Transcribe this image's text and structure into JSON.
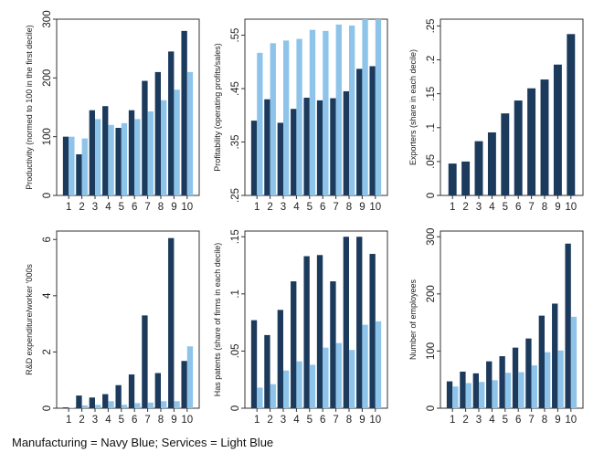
{
  "caption": "Manufacturing = Navy Blue; Services = Light Blue",
  "colors": {
    "manufacturing": "#1b3a5c",
    "services": "#8ec4ea",
    "axis": "#333333"
  },
  "chart_data": [
    {
      "type": "bar",
      "ylabel": "Productivity (normed to 100 in the first decile)",
      "ylim": [
        0,
        300
      ],
      "yticks": [
        0,
        100,
        200,
        300
      ],
      "yticklabels": [
        "0",
        "100",
        "200",
        "300"
      ],
      "grid": false,
      "categories": [
        "1",
        "2",
        "3",
        "4",
        "5",
        "6",
        "7",
        "8",
        "9",
        "10"
      ],
      "series": [
        {
          "values": [
            100,
            70,
            145,
            152,
            115,
            145,
            195,
            210,
            245,
            280
          ]
        },
        {
          "values": [
            100,
            97,
            130,
            120,
            123,
            130,
            143,
            162,
            180,
            210
          ]
        }
      ]
    },
    {
      "type": "bar",
      "ylabel": "Profitability (operating profits/sales)",
      "ylim": [
        0.25,
        0.58
      ],
      "yticks": [
        0.25,
        0.35,
        0.45,
        0.55
      ],
      "yticklabels": [
        ".25",
        ".35",
        ".45",
        ".55"
      ],
      "grid": false,
      "categories": [
        "1",
        "2",
        "3",
        "4",
        "5",
        "6",
        "7",
        "8",
        "9",
        "10"
      ],
      "series": [
        {
          "values": [
            0.39,
            0.43,
            0.386,
            0.412,
            0.433,
            0.428,
            0.432,
            0.445,
            0.487,
            0.492
          ]
        },
        {
          "values": [
            0.517,
            0.535,
            0.54,
            0.543,
            0.56,
            0.558,
            0.57,
            0.568,
            0.58,
            0.59
          ]
        }
      ]
    },
    {
      "type": "bar",
      "ylabel": "Exporters (share in each decile)",
      "ylim": [
        0,
        0.26
      ],
      "yticks": [
        0,
        0.05,
        0.1,
        0.15,
        0.2,
        0.25
      ],
      "yticklabels": [
        "0",
        ".05",
        ".1",
        ".15",
        ".2",
        ".25"
      ],
      "grid": false,
      "categories": [
        "1",
        "2",
        "3",
        "4",
        "5",
        "6",
        "7",
        "8",
        "9",
        "10"
      ],
      "series": [
        {
          "values": [
            0.047,
            0.05,
            0.08,
            0.093,
            0.121,
            0.14,
            0.158,
            0.171,
            0.193,
            0.238
          ]
        }
      ]
    },
    {
      "type": "bar",
      "ylabel": "R&D expenditure/worker '000s",
      "ylim": [
        0,
        6.3
      ],
      "yticks": [
        0,
        2,
        4,
        6
      ],
      "yticklabels": [
        "0",
        "2",
        "4",
        "6"
      ],
      "grid": false,
      "categories": [
        "1",
        "2",
        "3",
        "4",
        "5",
        "6",
        "7",
        "8",
        "9",
        "10"
      ],
      "series": [
        {
          "values": [
            0.03,
            0.45,
            0.38,
            0.5,
            0.82,
            1.2,
            3.3,
            1.25,
            6.05,
            1.68
          ]
        },
        {
          "values": [
            0.02,
            0.1,
            0.12,
            0.25,
            0.12,
            0.18,
            0.2,
            0.25,
            0.25,
            2.2
          ]
        }
      ]
    },
    {
      "type": "bar",
      "ylabel": "Has patents (share of firms in each decile)",
      "ylim": [
        0,
        0.155
      ],
      "yticks": [
        0,
        0.05,
        0.1,
        0.15
      ],
      "yticklabels": [
        "0",
        ".05",
        ".1",
        ".15"
      ],
      "grid": false,
      "categories": [
        "1",
        "2",
        "3",
        "4",
        "5",
        "6",
        "7",
        "8",
        "9",
        "10"
      ],
      "series": [
        {
          "values": [
            0.077,
            0.064,
            0.086,
            0.111,
            0.133,
            0.134,
            0.111,
            0.15,
            0.15,
            0.135
          ]
        },
        {
          "values": [
            0.018,
            0.021,
            0.033,
            0.041,
            0.038,
            0.053,
            0.057,
            0.051,
            0.073,
            0.076
          ]
        }
      ]
    },
    {
      "type": "bar",
      "ylabel": "Number of employees",
      "ylim": [
        0,
        310
      ],
      "yticks": [
        0,
        100,
        200,
        300
      ],
      "yticklabels": [
        "0",
        "100",
        "200",
        "300"
      ],
      "grid": false,
      "categories": [
        "1",
        "2",
        "3",
        "4",
        "5",
        "6",
        "7",
        "8",
        "9",
        "10"
      ],
      "series": [
        {
          "values": [
            47,
            64,
            61,
            82,
            91,
            106,
            122,
            162,
            183,
            288
          ]
        },
        {
          "values": [
            38,
            44,
            46,
            49,
            62,
            63,
            75,
            98,
            101,
            160
          ]
        }
      ]
    }
  ]
}
